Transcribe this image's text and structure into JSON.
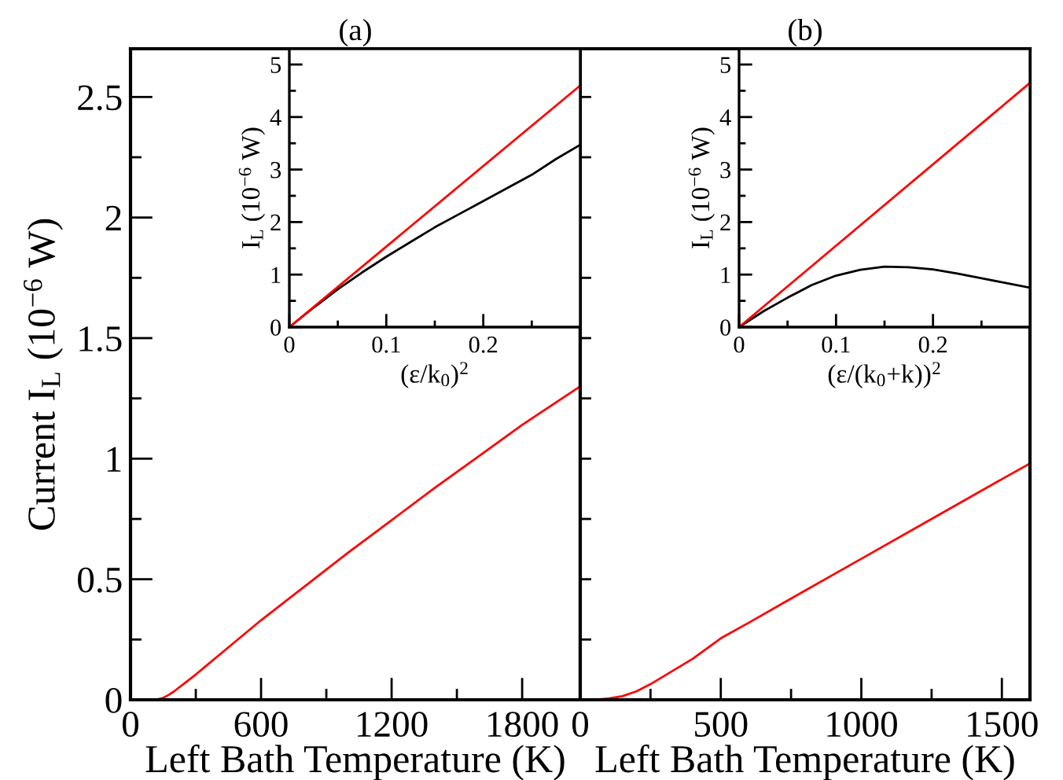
{
  "chart_data": [
    {
      "type": "line",
      "title": "(a)",
      "xlabel": "Left Bath Temperature (K)",
      "ylabel": "Current I$_{L}$ (10$^{−6}$ W)",
      "xlim": [
        0,
        2067
      ],
      "ylim": [
        0,
        2.7
      ],
      "xticks": [
        0,
        {
          "value": 300,
          "label": null
        },
        600,
        {
          "value": 900,
          "label": null
        },
        1200,
        {
          "value": 1500,
          "label": null
        },
        1800
      ],
      "yticks": [
        0,
        {
          "value": 0.25,
          "label": null
        },
        0.5,
        {
          "value": 0.75,
          "label": null
        },
        1,
        {
          "value": 1.25,
          "label": null
        },
        1.5,
        {
          "value": 1.75,
          "label": null
        },
        2,
        {
          "value": 2.25,
          "label": null
        },
        2.5
      ],
      "series": [
        {
          "color": "#ff0000",
          "x": [
            0,
            100,
            125,
            150,
            175,
            200,
            250,
            300,
            400,
            500,
            600,
            800,
            1000,
            1200,
            1400,
            1600,
            1800,
            2067
          ],
          "values": [
            0,
            0,
            0.002,
            0.008,
            0.02,
            0.035,
            0.07,
            0.105,
            0.18,
            0.255,
            0.33,
            0.47,
            0.61,
            0.745,
            0.88,
            1.01,
            1.14,
            1.3
          ]
        }
      ]
    },
    {
      "type": "line",
      "xlabel": "(ε/k$_{0}$)$^{2}$",
      "ylabel": "I$_{L}$ (10$^{−6}$ W)",
      "xlim": [
        0,
        0.3
      ],
      "ylim": [
        0,
        5.3
      ],
      "xticks": [
        0,
        {
          "value": 0.05,
          "label": null
        },
        0.1,
        {
          "value": 0.15,
          "label": null
        },
        0.2,
        {
          "value": 0.25,
          "label": null
        }
      ],
      "yticks": [
        0,
        {
          "value": 0.5,
          "label": null
        },
        1,
        {
          "value": 1.5,
          "label": null
        },
        2,
        {
          "value": 2.5,
          "label": null
        },
        3,
        {
          "value": 3.5,
          "label": null
        },
        4,
        {
          "value": 4.5,
          "label": null
        },
        5
      ],
      "series": [
        {
          "color": "#000000",
          "x": [
            0,
            0.025,
            0.05,
            0.075,
            0.1,
            0.125,
            0.15,
            0.175,
            0.2,
            0.225,
            0.25,
            0.275,
            0.3
          ],
          "values": [
            0,
            0.37,
            0.72,
            1.04,
            1.34,
            1.62,
            1.9,
            2.15,
            2.4,
            2.65,
            2.9,
            3.2,
            3.47
          ]
        },
        {
          "color": "#ff0000",
          "x": [
            0,
            0.3
          ],
          "values": [
            0,
            4.6
          ]
        }
      ]
    },
    {
      "type": "line",
      "title": "(b)",
      "xlabel": "Left Bath Temperature (K)",
      "tick_labels": "x",
      "xlim": [
        0,
        1600
      ],
      "ylim": [
        0,
        2.7
      ],
      "xticks": [
        0,
        {
          "value": 250,
          "label": null
        },
        500,
        {
          "value": 750,
          "label": null
        },
        1000,
        {
          "value": 1250,
          "label": null
        },
        1500
      ],
      "yticks": [
        {
          "value": 0,
          "label": null
        },
        {
          "value": 0.25,
          "label": null
        },
        {
          "value": 0.5,
          "label": null
        },
        {
          "value": 0.75,
          "label": null
        },
        {
          "value": 1,
          "label": null
        },
        {
          "value": 1.25,
          "label": null
        },
        {
          "value": 1.5,
          "label": null
        },
        {
          "value": 1.75,
          "label": null
        },
        {
          "value": 2,
          "label": null
        },
        {
          "value": 2.25,
          "label": null
        },
        {
          "value": 2.5,
          "label": null
        }
      ],
      "series": [
        {
          "color": "#ff0000",
          "x": [
            0,
            50,
            100,
            150,
            200,
            250,
            300,
            400,
            500,
            600,
            750,
            1000,
            1250,
            1500,
            1600
          ],
          "values": [
            0,
            0,
            0.005,
            0.015,
            0.035,
            0.065,
            0.1,
            0.17,
            0.255,
            0.32,
            0.42,
            0.585,
            0.75,
            0.915,
            0.98
          ]
        }
      ]
    },
    {
      "type": "line",
      "xlabel": "(ε/(k$_{0}$+k))$^{2}$",
      "ylabel": "I$_{L}$ (10$^{−6}$ W)",
      "xlim": [
        0,
        0.3
      ],
      "ylim": [
        0,
        5.3
      ],
      "xticks": [
        0,
        {
          "value": 0.05,
          "label": null
        },
        0.1,
        {
          "value": 0.15,
          "label": null
        },
        0.2,
        {
          "value": 0.25,
          "label": null
        }
      ],
      "yticks": [
        0,
        {
          "value": 0.5,
          "label": null
        },
        1,
        {
          "value": 1.5,
          "label": null
        },
        2,
        {
          "value": 2.5,
          "label": null
        },
        3,
        {
          "value": 3.5,
          "label": null
        },
        4,
        {
          "value": 4.5,
          "label": null
        },
        5
      ],
      "series": [
        {
          "color": "#000000",
          "x": [
            0,
            0.025,
            0.05,
            0.075,
            0.1,
            0.125,
            0.15,
            0.175,
            0.2,
            0.225,
            0.25,
            0.275,
            0.3
          ],
          "values": [
            0,
            0.3,
            0.56,
            0.8,
            0.98,
            1.09,
            1.15,
            1.14,
            1.1,
            1.02,
            0.93,
            0.84,
            0.75
          ]
        },
        {
          "color": "#ff0000",
          "x": [
            0,
            0.3
          ],
          "values": [
            0,
            4.65
          ]
        }
      ]
    }
  ]
}
